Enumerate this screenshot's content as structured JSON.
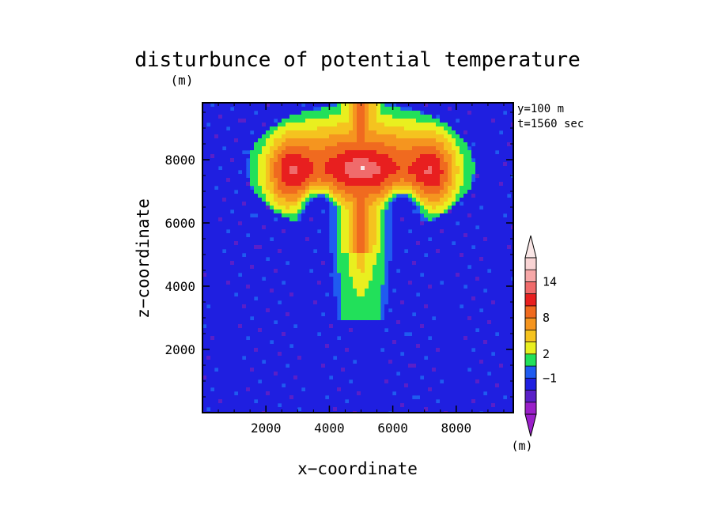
{
  "chart_data": {
    "type": "heatmap",
    "title": "disturbunce of potential temperature",
    "title_unit": "(m)",
    "annotation_lines": [
      "y=100 m",
      "t=1560 sec"
    ],
    "xlabel": "x−coordinate",
    "ylabel": "z−coordinate",
    "xlim": [
      0,
      9800
    ],
    "ylim": [
      0,
      9800
    ],
    "xticks": [
      2000,
      4000,
      6000,
      8000
    ],
    "yticks": [
      2000,
      4000,
      6000,
      8000
    ],
    "xtick_labels": [
      "2000",
      "4000",
      "6000",
      "8000"
    ],
    "ytick_labels": [
      "2000",
      "4000",
      "6000",
      "8000"
    ],
    "colorbar": {
      "unit_label": "(m)",
      "levels": [
        -3,
        -2,
        -1,
        0,
        2,
        4,
        6,
        8,
        10,
        12,
        14,
        16
      ],
      "tick_labels": [
        {
          "value": 14,
          "text": "14"
        },
        {
          "value": 8,
          "text": "8"
        },
        {
          "value": 2,
          "text": "2"
        },
        {
          "value": -1,
          "text": "−1"
        }
      ],
      "colors": [
        "#9a1fc9",
        "#5a1fc8",
        "#1f1fe0",
        "#1f5bf0",
        "#22e05a",
        "#e9ef1f",
        "#f5c31f",
        "#f5951f",
        "#f06a1f",
        "#e81f1f",
        "#f06b6b",
        "#f7a8a8",
        "#f9d4d4"
      ],
      "below_color": "#9a1fc9",
      "above_color": "#f9e6e6"
    },
    "plume": {
      "stem_center_x": 5000,
      "stem_half_width": 700,
      "stem_base_z": 2900,
      "cap_center_z": 7700,
      "cap_half_width": 3400,
      "cap_top_z": 9700,
      "cap_bottom_z": 5800,
      "max_value": 15
    }
  }
}
